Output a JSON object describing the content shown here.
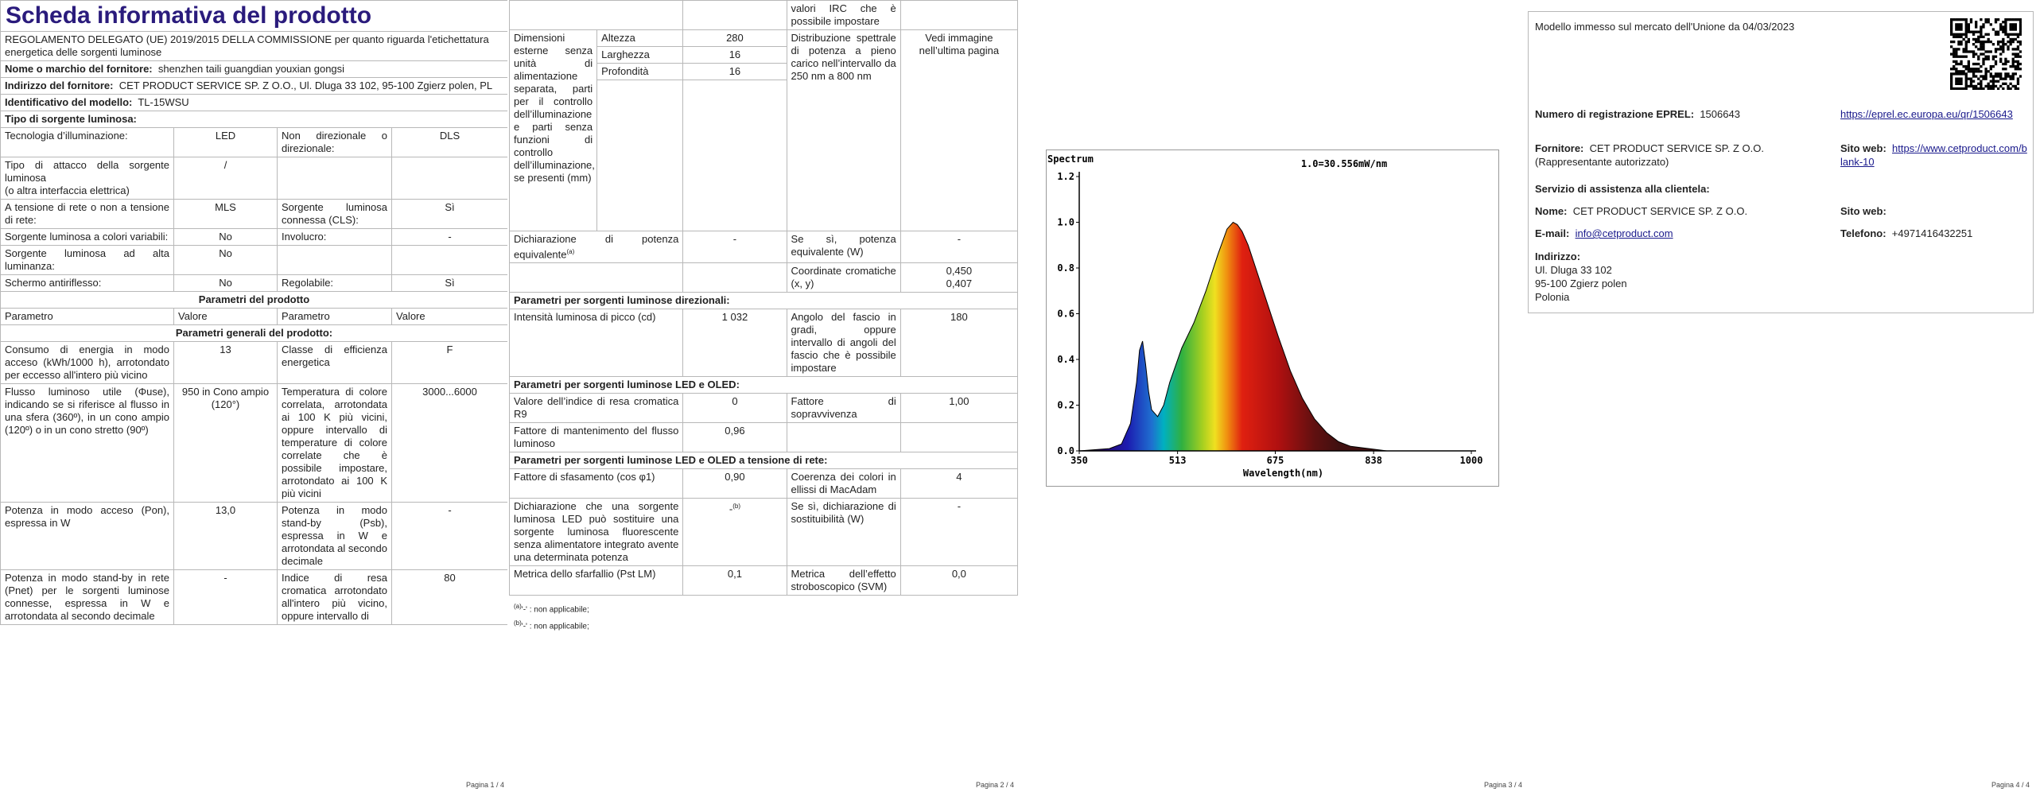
{
  "page1": {
    "title": "Scheda informativa del prodotto",
    "regulation": "REGOLAMENTO DELEGATO (UE) 2019/2015 DELLA COMMISSIONE per quanto riguarda l'etichettatura energetica delle sorgenti luminose",
    "fields": [
      {
        "label": "Nome o marchio del fornitore:",
        "value": "shenzhen taili guangdian youxian gongsi"
      },
      {
        "label": "Indirizzo del fornitore:",
        "value": "CET PRODUCT SERVICE SP. Z O.O., Ul. Dluga 33 102, 95-100 Zgierz polen, PL"
      },
      {
        "label": "Identificativo del modello:",
        "value": "TL-15WSU"
      }
    ],
    "type_heading": "Tipo di sorgente luminosa:",
    "type_rows": [
      [
        "Tecnologia d’illuminazione:",
        "LED",
        "Non direzionale o direzionale:",
        "DLS"
      ],
      [
        "Tipo di attacco della sorgente luminosa\n(o altra interfaccia elettrica)",
        "/",
        null,
        null
      ],
      [
        "A tensione di rete o non a tensione di rete:",
        "MLS",
        "Sorgente luminosa connessa (CLS):",
        "Sì"
      ],
      [
        "Sorgente luminosa a colori variabili:",
        "No",
        "Involucro:",
        "-"
      ],
      [
        "Sorgente luminosa ad alta luminanza:",
        "No",
        null,
        null
      ],
      [
        "Schermo antiriflesso:",
        "No",
        "Regolabile:",
        "Sì"
      ]
    ],
    "params_heading": "Parametri del prodotto",
    "columns": [
      "Parametro",
      "Valore",
      "Parametro",
      "Valore"
    ],
    "general_heading": "Parametri generali del prodotto:",
    "general_rows": [
      [
        "Consumo di energia in modo acceso (kWh/1000 h), arrotondato per eccesso all'intero più vicino",
        "13",
        "Classe di efficienza energetica",
        "F"
      ],
      [
        "Flusso luminoso utile (Φuse), indicando se si riferisce al flusso in una sfera (360º), in un cono ampio (120º) o in un cono stretto (90º)",
        "950 in Cono ampio (120°)",
        "Temperatura di colore correlata, arrotondata ai 100 K più vicini, oppure intervallo di temperature di colore correlate che è possibile impostare, arrotondato ai 100 K più vicini",
        "3000...6000"
      ],
      [
        "Potenza in modo acceso (Pon), espressa in W",
        "13,0",
        "Potenza in modo stand-by (Psb), espressa in W e arrotondata al secondo decimale",
        "-"
      ],
      [
        "Potenza in modo stand-by in rete (Pnet) per le sorgenti luminose connesse, espressa in W e arrotondata al secondo decimale",
        "-",
        "Indice di resa cromatica arrotondato all'intero più vicino, oppure intervallo di",
        "80"
      ]
    ],
    "footer": "Pagina 1 / 4"
  },
  "page2": {
    "continuation": "valori IRC che è possibile impostare",
    "dimensions": {
      "label": "Dimensioni esterne senza unità di alimentazione separata, parti per il controllo dell’illuminazione e parti senza funzioni di controllo dell’illuminazione, se presenti (mm)",
      "parts": [
        {
          "name": "Altezza",
          "value": "280"
        },
        {
          "name": "Larghezza",
          "value": "16"
        },
        {
          "name": "Profondità",
          "value": "16"
        }
      ],
      "spd_label": "Distribuzione spettrale di potenza a pieno carico nell’intervallo da 250 nm a 800 nm",
      "spd_value": "Vedi immagine nell’ultima pagina"
    },
    "rows": [
      [
        {
          "text": "Dichiarazione di potenza equivalente",
          "sup": "(a)"
        },
        "-",
        "Se sì, potenza equivalente (W)",
        "-"
      ],
      [
        null,
        null,
        "Coordinate cromatiche (x, y)",
        "0,450\n0,407"
      ]
    ],
    "sections": [
      {
        "heading": "Parametri per sorgenti luminose direzionali:",
        "rows": [
          [
            "Intensità luminosa di picco (cd)",
            "1 032",
            "Angolo del fascio in gradi, oppure intervallo di angoli del fascio che è possibile impostare",
            "180"
          ]
        ]
      },
      {
        "heading": "Parametri per sorgenti luminose LED e OLED:",
        "rows": [
          [
            "Valore dell’indice di resa cromatica R9",
            "0",
            "Fattore di sopravvivenza",
            "1,00"
          ],
          [
            "Fattore di mantenimento del flusso luminoso",
            "0,96",
            null,
            null
          ]
        ]
      },
      {
        "heading": "Parametri per sorgenti luminose LED e OLED a tensione di rete:",
        "rows": [
          [
            "Fattore di sfasamento (cos φ1)",
            "0,90",
            "Coerenza dei colori in ellissi di MacAdam",
            "4"
          ],
          [
            "Dichiarazione che una sorgente luminosa LED può sostituire una sorgente luminosa fluorescente senza alimentatore integrato avente una determinata potenza",
            {
              "text": "-",
              "sup": "(b)"
            },
            "Se sì, dichiarazione di sostituibilità (W)",
            "-"
          ],
          [
            "Metrica dello sfarfallio (Pst LM)",
            "0,1",
            "Metrica dell’effetto stroboscopico (SVM)",
            "0,0"
          ]
        ]
      }
    ],
    "notes": [
      {
        "mark": "(a)",
        "text": "'-' : non applicabile;"
      },
      {
        "mark": "(b)",
        "text": "'-' : non applicabile;"
      }
    ],
    "footer": "Pagina 2 / 4"
  },
  "chart_data": {
    "type": "line",
    "title": "Spectrum",
    "annotation": "1.0=30.556mW/nm",
    "x_label": "Wavelength(nm)",
    "x": [
      350,
      400,
      420,
      435,
      445,
      450,
      455,
      460,
      465,
      470,
      480,
      490,
      500,
      520,
      540,
      560,
      580,
      595,
      605,
      612,
      620,
      630,
      640,
      660,
      680,
      700,
      720,
      740,
      760,
      780,
      800,
      830,
      860,
      1000
    ],
    "values": [
      0,
      0.01,
      0.03,
      0.12,
      0.3,
      0.44,
      0.48,
      0.38,
      0.26,
      0.18,
      0.15,
      0.2,
      0.3,
      0.45,
      0.56,
      0.7,
      0.86,
      0.97,
      1.0,
      0.99,
      0.96,
      0.9,
      0.82,
      0.66,
      0.5,
      0.35,
      0.23,
      0.14,
      0.08,
      0.04,
      0.02,
      0.01,
      0,
      0
    ],
    "color": "#000000",
    "xlim": [
      350,
      1000
    ],
    "xticks": [
      350,
      513,
      675,
      838,
      1000
    ],
    "ylim": [
      0,
      1.2
    ],
    "yticks": [
      {
        "value": 0,
        "label": "0.0"
      },
      0.2,
      0.4,
      0.6,
      0.8,
      {
        "value": 1,
        "label": "1.0"
      },
      1.2
    ]
  },
  "page3": {
    "footer": "Pagina 3 / 4"
  },
  "page4": {
    "market": "Modello immesso sul mercato dell'Unione da 04/03/2023",
    "eprel": {
      "label": "Numero di registrazione EPREL:",
      "value": "1506643",
      "link": "https://eprel.ec.europa.eu/qr/1506643"
    },
    "supplier": {
      "label": "Fornitore:",
      "value": "CET PRODUCT SERVICE SP. Z O.O. (Rappresentante autorizzato)",
      "web_label": "Sito web:",
      "web": "https://www.cetproduct.com/blank-10"
    },
    "service_heading": "Servizio di assistenza alla clientela:",
    "name": {
      "label": "Nome:",
      "value": "CET PRODUCT SERVICE SP. Z O.O.",
      "web_label": "Sito web:"
    },
    "email": {
      "label": "E-mail:",
      "value": "info@cetproduct.com",
      "phone_label": "Telefono:",
      "phone": "+4971416432251"
    },
    "address": {
      "label": "Indirizzo:",
      "lines": [
        "Ul. Dluga 33 102",
        "95-100 Zgierz polen",
        "Polonia"
      ]
    },
    "footer": "Pagina 4 / 4"
  }
}
